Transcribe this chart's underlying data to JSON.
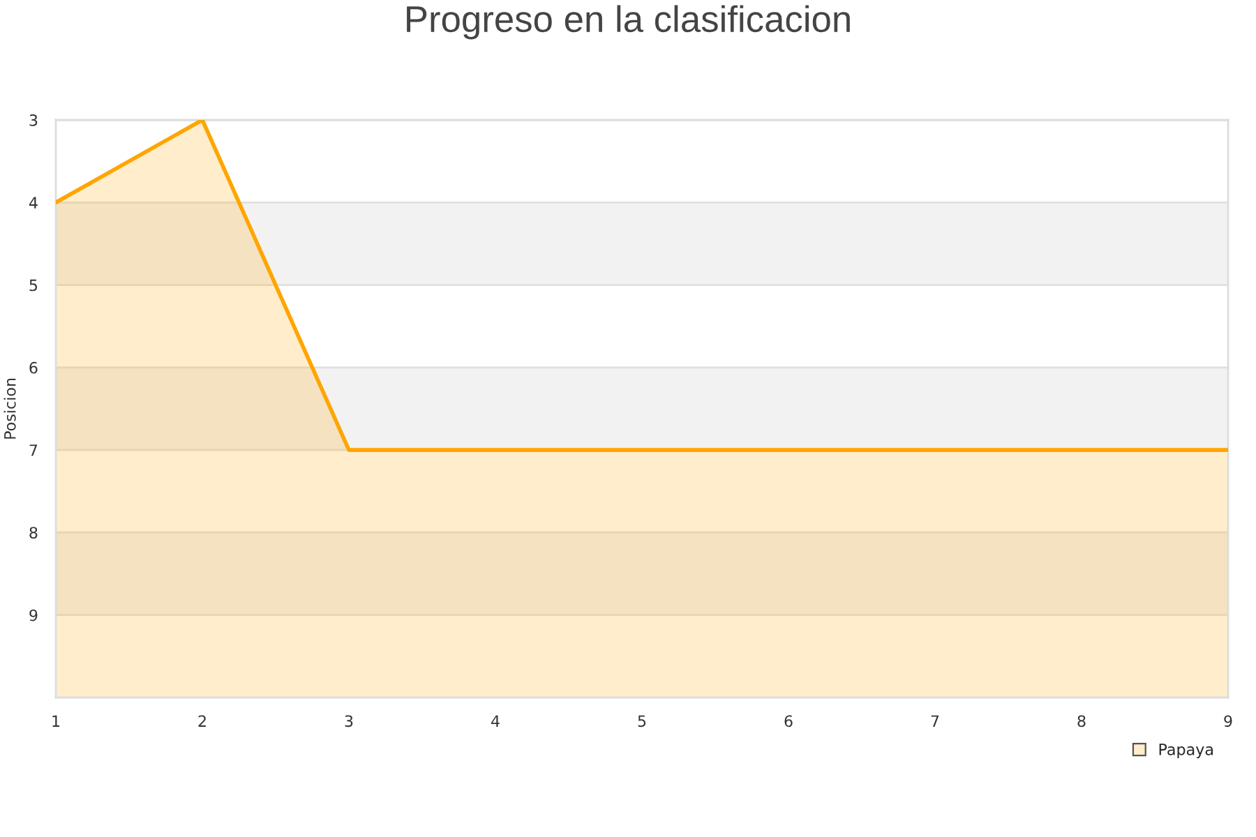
{
  "chart_data": {
    "type": "line",
    "title": "Progreso en la clasificacion",
    "ylabel": "Posicion",
    "x": [
      1,
      2,
      3,
      4,
      5,
      6,
      7,
      8,
      9
    ],
    "series": [
      {
        "name": "Papaya",
        "color": "#ffa500",
        "values": [
          4,
          3,
          7,
          7,
          7,
          7,
          7,
          7,
          7
        ],
        "lower": [
          10,
          10,
          10,
          10,
          10,
          10,
          10,
          10,
          10
        ],
        "upper": [
          4,
          3,
          7,
          7,
          7,
          7,
          7,
          7,
          7
        ]
      }
    ],
    "xlim": [
      1,
      9
    ],
    "xticks": [
      1,
      2,
      3,
      4,
      5,
      6,
      7,
      8,
      9
    ],
    "ylim": [
      10,
      3
    ],
    "yticks": [
      3,
      4,
      5,
      6,
      7,
      8,
      9
    ],
    "bands": [
      {
        "axis": "y",
        "from": 4,
        "to": 5,
        "color": "#f2f2f2"
      },
      {
        "axis": "y",
        "from": 6,
        "to": 7,
        "color": "#f2f2f2"
      },
      {
        "axis": "y",
        "from": 8,
        "to": 9,
        "color": "#f2f2f2"
      }
    ],
    "grid": "y",
    "legend": "bottom right",
    "marker": "none",
    "line_style": "solid"
  }
}
